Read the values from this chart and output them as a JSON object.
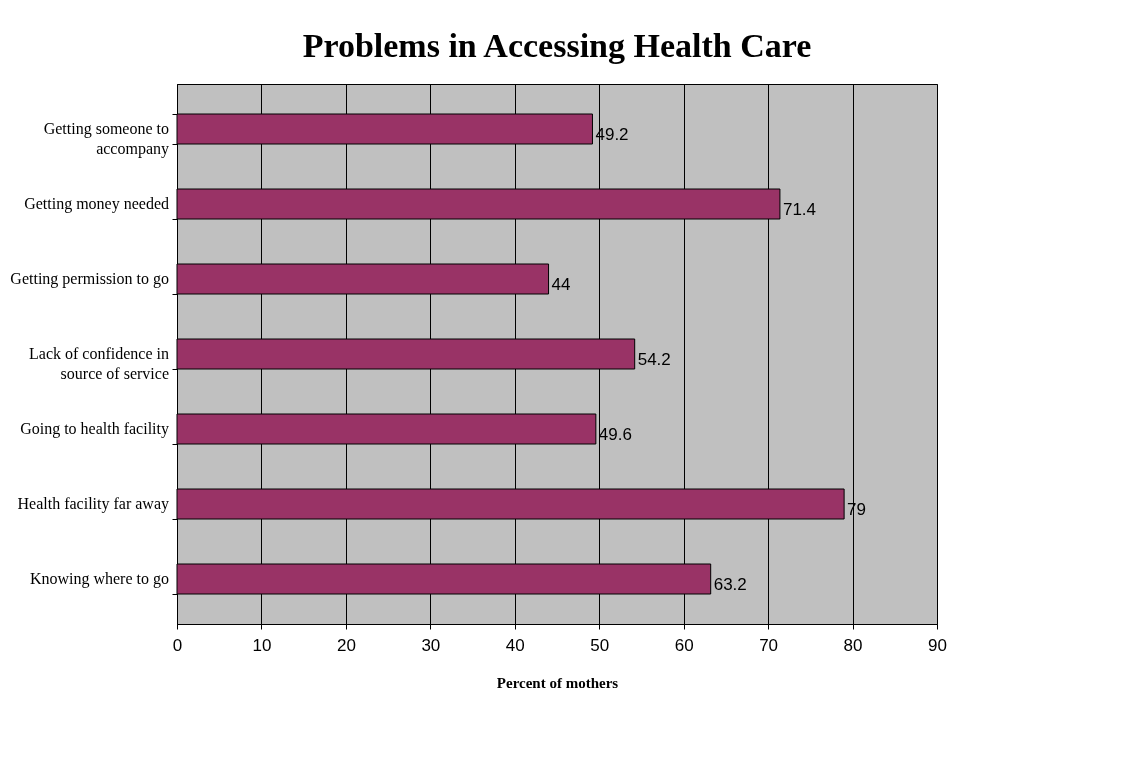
{
  "chart_data": {
    "type": "bar",
    "orientation": "horizontal",
    "title": "Problems in Accessing Health Care",
    "xlabel": "Percent of mothers",
    "categories": [
      "Getting someone to accompany",
      "Getting money needed",
      "Getting permission to go",
      "Lack of confidence in source of service",
      "Going to health facility",
      "Health facility far away",
      "Knowing where to go"
    ],
    "values": [
      49.2,
      71.4,
      44,
      54.2,
      49.6,
      79,
      63.2
    ],
    "color": "#993366",
    "data_labels": true,
    "xlim": [
      0,
      90
    ],
    "xticks": [
      0,
      10,
      20,
      30,
      40,
      50,
      60,
      70,
      80,
      90
    ],
    "grid": "x"
  }
}
